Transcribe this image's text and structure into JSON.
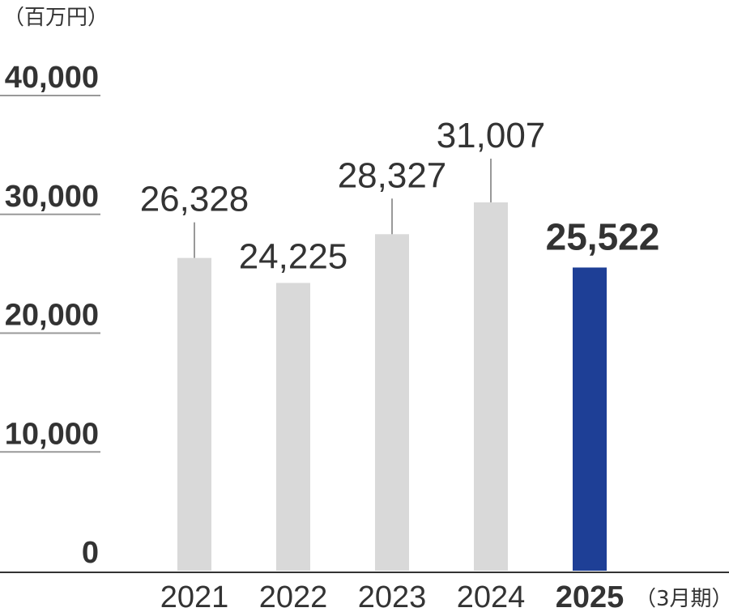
{
  "chart_data": {
    "type": "bar",
    "unit_label": "（百万円）",
    "period_label": "（3月期）",
    "categories": [
      "2021",
      "2022",
      "2023",
      "2024",
      "2025"
    ],
    "values": [
      26328,
      24225,
      28327,
      31007,
      25522
    ],
    "value_labels": [
      "26,328",
      "24,225",
      "28,327",
      "31,007",
      "25,522"
    ],
    "highlight_index": 4,
    "ylim": [
      0,
      40000
    ],
    "y_ticks": [
      {
        "value": 0,
        "label": "0"
      },
      {
        "value": 10000,
        "label": "10,000"
      },
      {
        "value": 20000,
        "label": "20,000"
      },
      {
        "value": 30000,
        "label": "30,000"
      },
      {
        "value": 40000,
        "label": "40,000"
      }
    ],
    "colors": {
      "bar": "#d9d9d9",
      "highlight_bar": "#1e3f96",
      "highlight_text": "#1e3f96",
      "text": "#333333",
      "axis": "#333333",
      "tick_line": "#999999"
    }
  }
}
